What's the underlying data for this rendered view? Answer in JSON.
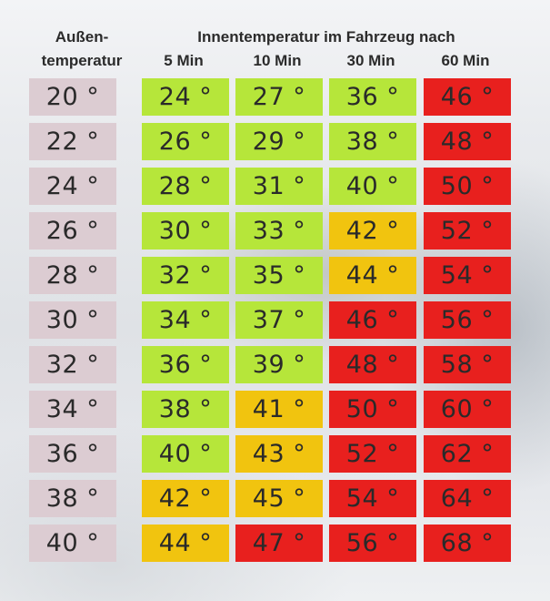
{
  "header": {
    "outside_line1": "Außen-",
    "outside_line2": "temperatur",
    "inside": "Innentemperatur im Fahrzeug nach",
    "columns": [
      "5 Min",
      "10 Min",
      "30 Min",
      "60 Min"
    ]
  },
  "colors": {
    "outside": "#dcccd2",
    "green": "#b6e63a",
    "yellow": "#f1c40f",
    "red": "#e8201e"
  },
  "rows": [
    {
      "outside": "20 °",
      "values": [
        {
          "t": "24 °",
          "c": "green"
        },
        {
          "t": "27 °",
          "c": "green"
        },
        {
          "t": "36 °",
          "c": "green"
        },
        {
          "t": "46 °",
          "c": "red"
        }
      ]
    },
    {
      "outside": "22 °",
      "values": [
        {
          "t": "26 °",
          "c": "green"
        },
        {
          "t": "29 °",
          "c": "green"
        },
        {
          "t": "38 °",
          "c": "green"
        },
        {
          "t": "48 °",
          "c": "red"
        }
      ]
    },
    {
      "outside": "24 °",
      "values": [
        {
          "t": "28 °",
          "c": "green"
        },
        {
          "t": "31 °",
          "c": "green"
        },
        {
          "t": "40 °",
          "c": "green"
        },
        {
          "t": "50 °",
          "c": "red"
        }
      ]
    },
    {
      "outside": "26 °",
      "values": [
        {
          "t": "30 °",
          "c": "green"
        },
        {
          "t": "33 °",
          "c": "green"
        },
        {
          "t": "42 °",
          "c": "yellow"
        },
        {
          "t": "52 °",
          "c": "red"
        }
      ]
    },
    {
      "outside": "28 °",
      "values": [
        {
          "t": "32 °",
          "c": "green"
        },
        {
          "t": "35 °",
          "c": "green"
        },
        {
          "t": "44 °",
          "c": "yellow"
        },
        {
          "t": "54 °",
          "c": "red"
        }
      ]
    },
    {
      "outside": "30 °",
      "values": [
        {
          "t": "34 °",
          "c": "green"
        },
        {
          "t": "37 °",
          "c": "green"
        },
        {
          "t": "46 °",
          "c": "red"
        },
        {
          "t": "56 °",
          "c": "red"
        }
      ]
    },
    {
      "outside": "32 °",
      "values": [
        {
          "t": "36 °",
          "c": "green"
        },
        {
          "t": "39 °",
          "c": "green"
        },
        {
          "t": "48 °",
          "c": "red"
        },
        {
          "t": "58 °",
          "c": "red"
        }
      ]
    },
    {
      "outside": "34 °",
      "values": [
        {
          "t": "38 °",
          "c": "green"
        },
        {
          "t": "41 °",
          "c": "yellow"
        },
        {
          "t": "50 °",
          "c": "red"
        },
        {
          "t": "60 °",
          "c": "red"
        }
      ]
    },
    {
      "outside": "36 °",
      "values": [
        {
          "t": "40 °",
          "c": "green"
        },
        {
          "t": "43 °",
          "c": "yellow"
        },
        {
          "t": "52 °",
          "c": "red"
        },
        {
          "t": "62 °",
          "c": "red"
        }
      ]
    },
    {
      "outside": "38 °",
      "values": [
        {
          "t": "42 °",
          "c": "yellow"
        },
        {
          "t": "45 °",
          "c": "yellow"
        },
        {
          "t": "54 °",
          "c": "red"
        },
        {
          "t": "64 °",
          "c": "red"
        }
      ]
    },
    {
      "outside": "40 °",
      "values": [
        {
          "t": "44 °",
          "c": "yellow"
        },
        {
          "t": "47 °",
          "c": "red"
        },
        {
          "t": "56 °",
          "c": "red"
        },
        {
          "t": "68 °",
          "c": "red"
        }
      ]
    }
  ]
}
